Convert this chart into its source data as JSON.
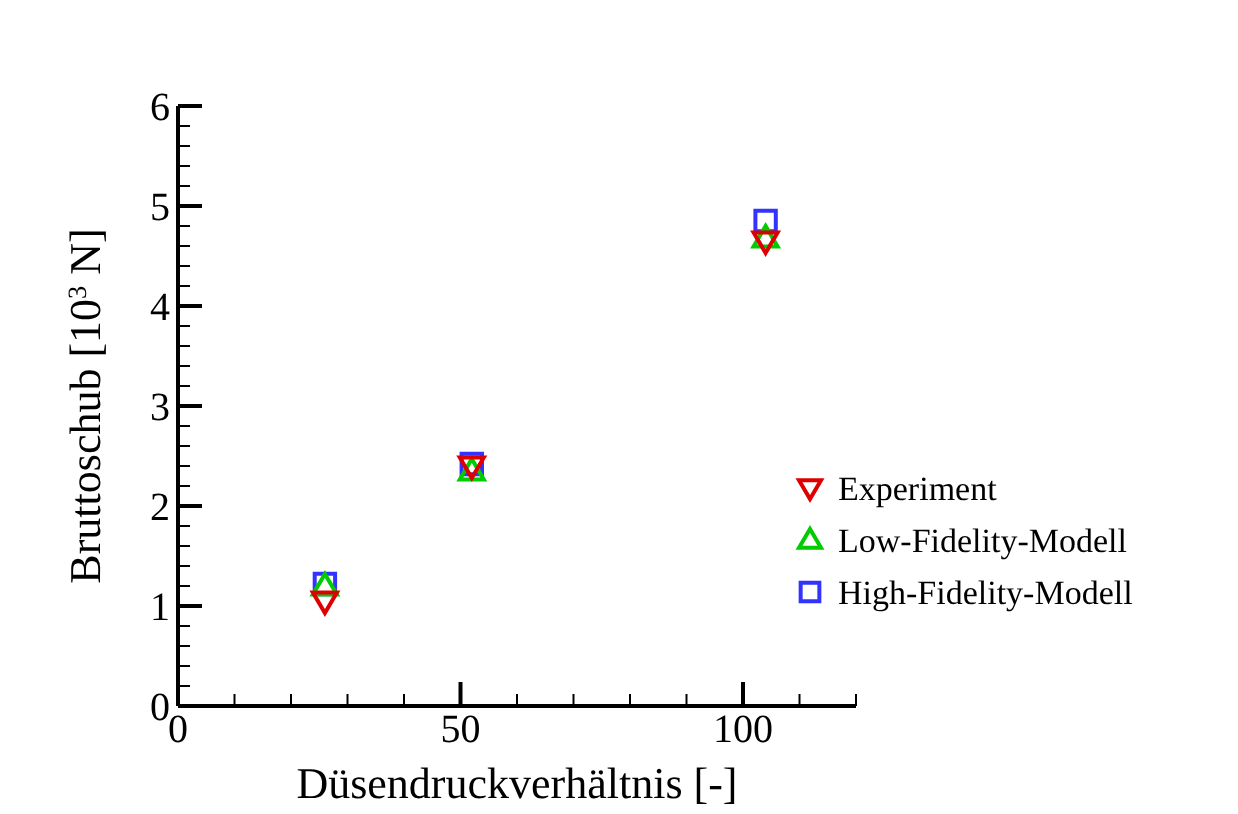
{
  "chart_data": {
    "type": "scatter",
    "xlabel": "Düsendruckverhältnis [-]",
    "ylabel": "Bruttoschub [10$^{3}$ N]",
    "xlim": [
      0,
      120
    ],
    "ylim": [
      0,
      6
    ],
    "xticks": [
      0,
      {
        "value": 10,
        "label": null
      },
      {
        "value": 20,
        "label": null
      },
      {
        "value": 30,
        "label": null
      },
      {
        "value": 40,
        "label": null
      },
      50,
      {
        "value": 60,
        "label": null
      },
      {
        "value": 70,
        "label": null
      },
      {
        "value": 80,
        "label": null
      },
      {
        "value": 90,
        "label": null
      },
      100,
      {
        "value": 110,
        "label": null
      },
      {
        "value": 120,
        "label": null
      }
    ],
    "yticks": [
      0,
      {
        "value": 0.2,
        "label": null
      },
      {
        "value": 0.4,
        "label": null
      },
      {
        "value": 0.6,
        "label": null
      },
      {
        "value": 0.8,
        "label": null
      },
      1,
      {
        "value": 1.2,
        "label": null
      },
      {
        "value": 1.4,
        "label": null
      },
      {
        "value": 1.6,
        "label": null
      },
      {
        "value": 1.8,
        "label": null
      },
      2,
      {
        "value": 2.2,
        "label": null
      },
      {
        "value": 2.4,
        "label": null
      },
      {
        "value": 2.6,
        "label": null
      },
      {
        "value": 2.8,
        "label": null
      },
      3,
      {
        "value": 3.2,
        "label": null
      },
      {
        "value": 3.4,
        "label": null
      },
      {
        "value": 3.6,
        "label": null
      },
      {
        "value": 3.8,
        "label": null
      },
      4,
      {
        "value": 4.2,
        "label": null
      },
      {
        "value": 4.4,
        "label": null
      },
      {
        "value": 4.6,
        "label": null
      },
      {
        "value": 4.8,
        "label": null
      },
      5,
      {
        "value": 5.2,
        "label": null
      },
      {
        "value": 5.4,
        "label": null
      },
      {
        "value": 5.6,
        "label": null
      },
      {
        "value": 5.8,
        "label": null
      },
      6
    ],
    "x": [
      26,
      52,
      104
    ],
    "grid": false,
    "legend": "right",
    "series": [
      {
        "name": "Experiment",
        "color": "#dd0000",
        "marker": "triangle-down",
        "values": [
          1.05,
          2.4,
          4.65
        ]
      },
      {
        "name": "Low-Fidelity-Modell",
        "color": "#00cc00",
        "marker": "triangle",
        "values": [
          1.2,
          2.35,
          4.68
        ]
      },
      {
        "name": "High-Fidelity-Modell",
        "color": "#3333ff",
        "marker": "square",
        "values": [
          1.22,
          2.42,
          4.85
        ]
      }
    ]
  }
}
